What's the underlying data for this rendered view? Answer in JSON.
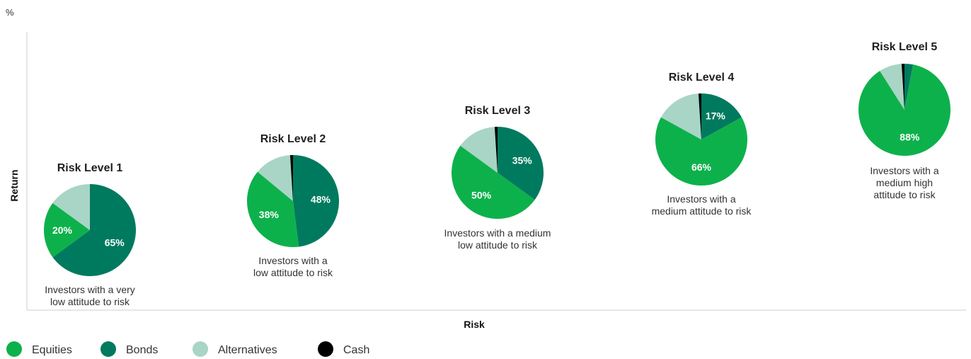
{
  "chart_data": {
    "type": "pie",
    "unit_label": "%",
    "xlabel": "Risk",
    "ylabel": "Return",
    "legend": [
      {
        "name": "Equities",
        "color": "#0db14b"
      },
      {
        "name": "Bonds",
        "color": "#007a5e"
      },
      {
        "name": "Alternatives",
        "color": "#a8d5c5"
      },
      {
        "name": "Cash",
        "color": "#000000"
      }
    ],
    "portfolios": [
      {
        "title": "Risk Level 1",
        "description": [
          "Investors with a very",
          "low attitude to risk"
        ],
        "slices": [
          {
            "name": "Bonds",
            "value": 65,
            "label": "65%"
          },
          {
            "name": "Equities",
            "value": 20,
            "label": "20%"
          },
          {
            "name": "Alternatives",
            "value": 15,
            "label": ""
          }
        ]
      },
      {
        "title": "Risk Level 2",
        "description": [
          "Investors with a",
          "low attitude to risk"
        ],
        "slices": [
          {
            "name": "Bonds",
            "value": 48,
            "label": "48%"
          },
          {
            "name": "Equities",
            "value": 38,
            "label": "38%"
          },
          {
            "name": "Alternatives",
            "value": 13,
            "label": ""
          },
          {
            "name": "Cash",
            "value": 1,
            "label": ""
          }
        ]
      },
      {
        "title": "Risk Level 3",
        "description": [
          "Investors with a medium",
          "low attitude to risk"
        ],
        "slices": [
          {
            "name": "Bonds",
            "value": 35,
            "label": "35%"
          },
          {
            "name": "Equities",
            "value": 50,
            "label": "50%"
          },
          {
            "name": "Alternatives",
            "value": 14,
            "label": ""
          },
          {
            "name": "Cash",
            "value": 1,
            "label": ""
          }
        ]
      },
      {
        "title": "Risk Level 4",
        "description": [
          "Investors with a",
          "medium attitude to risk"
        ],
        "slices": [
          {
            "name": "Bonds",
            "value": 17,
            "label": "17%"
          },
          {
            "name": "Equities",
            "value": 66,
            "label": "66%"
          },
          {
            "name": "Alternatives",
            "value": 16,
            "label": ""
          },
          {
            "name": "Cash",
            "value": 1,
            "label": ""
          }
        ]
      },
      {
        "title": "Risk Level 5",
        "description": [
          "Investors with a",
          "medium high",
          "attitude to risk"
        ],
        "slices": [
          {
            "name": "Bonds",
            "value": 3,
            "label": ""
          },
          {
            "name": "Equities",
            "value": 88,
            "label": "88%"
          },
          {
            "name": "Alternatives",
            "value": 8,
            "label": ""
          },
          {
            "name": "Cash",
            "value": 1,
            "label": ""
          }
        ]
      }
    ]
  }
}
